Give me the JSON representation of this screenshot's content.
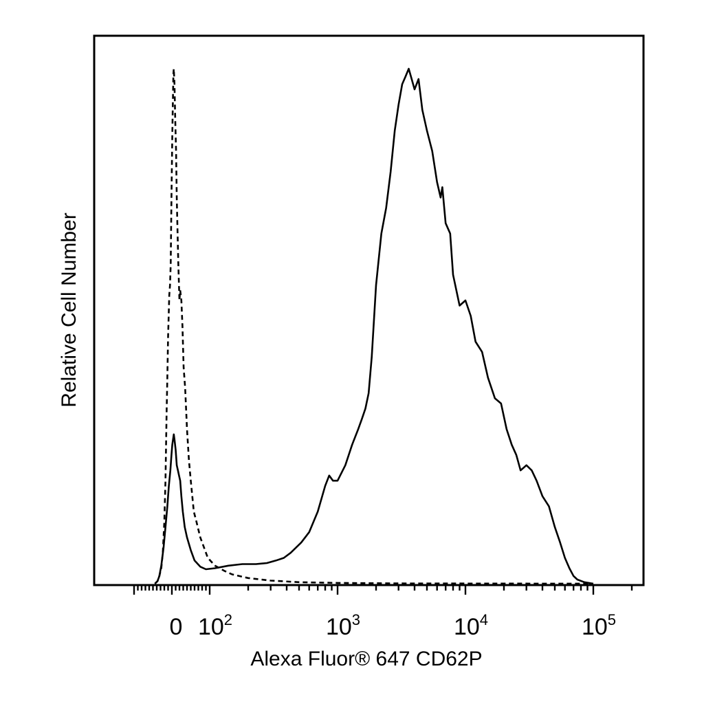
{
  "chart_data": {
    "type": "line",
    "xlabel": "Alexa Fluor® 647 CD62P",
    "ylabel": "Relative Cell Number",
    "x_scale": "biexponential",
    "x_tick_labels": [
      {
        "value": 0,
        "base": "0",
        "exp": ""
      },
      {
        "value": 100,
        "base": "10",
        "exp": "2"
      },
      {
        "value": 1000,
        "base": "10",
        "exp": "3"
      },
      {
        "value": 10000,
        "base": "10",
        "exp": "4"
      },
      {
        "value": 100000,
        "base": "10",
        "exp": "5"
      }
    ],
    "xlim": [
      -60,
      250000
    ],
    "ylim": [
      0,
      100
    ],
    "grid": false,
    "legend": "none",
    "series": [
      {
        "style": "dashed",
        "points": [
          [
            -45,
            0
          ],
          [
            -38,
            0.5
          ],
          [
            -33,
            1.5
          ],
          [
            -28,
            3
          ],
          [
            -24,
            6
          ],
          [
            -20,
            12
          ],
          [
            -17,
            20
          ],
          [
            -14,
            33
          ],
          [
            -12,
            40
          ],
          [
            -10,
            48
          ],
          [
            -7,
            56
          ],
          [
            -5,
            58
          ],
          [
            -3,
            62
          ],
          [
            -1,
            75
          ],
          [
            1,
            87
          ],
          [
            2,
            91
          ],
          [
            4,
            99
          ],
          [
            5,
            100
          ],
          [
            7,
            97
          ],
          [
            9,
            90
          ],
          [
            11,
            84
          ],
          [
            13,
            75
          ],
          [
            15,
            68
          ],
          [
            17,
            62
          ],
          [
            20,
            55
          ],
          [
            22,
            57
          ],
          [
            25,
            55
          ],
          [
            28,
            50
          ],
          [
            31,
            42
          ],
          [
            35,
            38
          ],
          [
            40,
            30
          ],
          [
            45,
            24
          ],
          [
            50,
            20
          ],
          [
            58,
            14
          ],
          [
            65,
            12
          ],
          [
            75,
            9
          ],
          [
            85,
            7
          ],
          [
            95,
            5
          ],
          [
            110,
            3.5
          ],
          [
            130,
            2.5
          ],
          [
            150,
            1.8
          ],
          [
            200,
            1.1
          ],
          [
            300,
            0.6
          ],
          [
            500,
            0.3
          ],
          [
            1000,
            0.15
          ],
          [
            3000,
            0.05
          ],
          [
            100000,
            0
          ]
        ]
      },
      {
        "style": "solid",
        "points": [
          [
            -45,
            0
          ],
          [
            -38,
            0.5
          ],
          [
            -33,
            1.5
          ],
          [
            -28,
            3.5
          ],
          [
            -22,
            7
          ],
          [
            -17,
            11
          ],
          [
            -12,
            15
          ],
          [
            -8,
            19
          ],
          [
            -4,
            22
          ],
          [
            -1,
            25
          ],
          [
            1,
            27
          ],
          [
            3,
            28
          ],
          [
            5,
            29
          ],
          [
            7,
            28
          ],
          [
            10,
            26
          ],
          [
            13,
            23
          ],
          [
            16,
            22
          ],
          [
            19,
            21
          ],
          [
            22,
            20
          ],
          [
            25,
            17
          ],
          [
            29,
            14
          ],
          [
            34,
            11
          ],
          [
            40,
            9
          ],
          [
            50,
            6.5
          ],
          [
            60,
            4.5
          ],
          [
            75,
            3.3
          ],
          [
            90,
            2.8
          ],
          [
            110,
            3
          ],
          [
            140,
            3.5
          ],
          [
            180,
            3.8
          ],
          [
            230,
            3.8
          ],
          [
            280,
            4
          ],
          [
            330,
            4.5
          ],
          [
            380,
            5
          ],
          [
            430,
            6
          ],
          [
            520,
            8
          ],
          [
            600,
            10
          ],
          [
            700,
            14
          ],
          [
            800,
            19
          ],
          [
            860,
            21
          ],
          [
            920,
            20
          ],
          [
            1000,
            20
          ],
          [
            1150,
            23
          ],
          [
            1300,
            27
          ],
          [
            1450,
            30
          ],
          [
            1550,
            32
          ],
          [
            1650,
            34
          ],
          [
            1750,
            37
          ],
          [
            1850,
            44
          ],
          [
            2000,
            58
          ],
          [
            2200,
            68
          ],
          [
            2400,
            73
          ],
          [
            2600,
            80
          ],
          [
            2800,
            88
          ],
          [
            3000,
            93
          ],
          [
            3200,
            97
          ],
          [
            3400,
            98.5
          ],
          [
            3600,
            100
          ],
          [
            3800,
            98
          ],
          [
            4000,
            96
          ],
          [
            4300,
            98
          ],
          [
            4600,
            92
          ],
          [
            5000,
            88
          ],
          [
            5500,
            84
          ],
          [
            6000,
            78
          ],
          [
            6400,
            75
          ],
          [
            6600,
            77
          ],
          [
            7000,
            70
          ],
          [
            7600,
            68
          ],
          [
            8000,
            60
          ],
          [
            9000,
            54
          ],
          [
            10000,
            55
          ],
          [
            11000,
            52
          ],
          [
            12000,
            47
          ],
          [
            13500,
            45
          ],
          [
            15000,
            40
          ],
          [
            17000,
            36
          ],
          [
            19000,
            35
          ],
          [
            21000,
            30
          ],
          [
            23000,
            27
          ],
          [
            25000,
            25
          ],
          [
            27000,
            22
          ],
          [
            30000,
            23
          ],
          [
            33000,
            22
          ],
          [
            36000,
            20
          ],
          [
            40000,
            17
          ],
          [
            45000,
            15
          ],
          [
            50000,
            11
          ],
          [
            55000,
            8
          ],
          [
            60000,
            5
          ],
          [
            65000,
            3
          ],
          [
            70000,
            1.5
          ],
          [
            75000,
            0.8
          ],
          [
            85000,
            0.3
          ],
          [
            100000,
            0
          ]
        ]
      }
    ]
  }
}
